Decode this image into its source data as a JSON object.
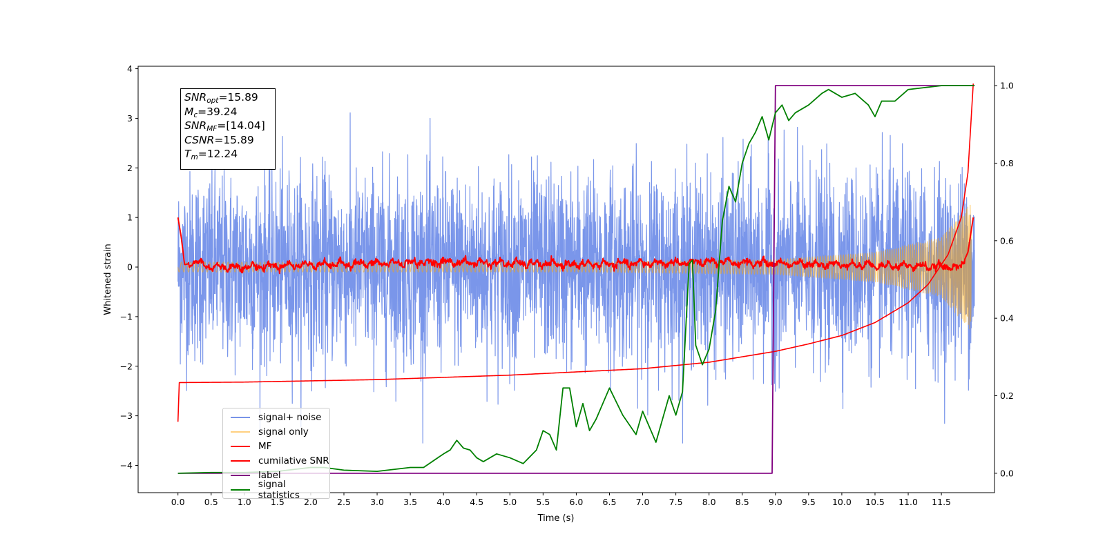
{
  "chart_data": {
    "type": "line",
    "xlabel": "Time (s)",
    "ylabel": "Whitened strain",
    "xlim": [
      -0.6,
      12.3
    ],
    "ylim": [
      -4.55,
      4.05
    ],
    "y2lim": [
      -0.05,
      1.05
    ],
    "x_ticks": [
      "0.0",
      "0.5",
      "1.0",
      "1.5",
      "2.0",
      "2.5",
      "3.0",
      "3.5",
      "4.0",
      "4.5",
      "5.0",
      "5.5",
      "6.0",
      "6.5",
      "7.0",
      "7.5",
      "8.0",
      "8.5",
      "9.0",
      "9.5",
      "10.0",
      "10.5",
      "11.0",
      "11.5"
    ],
    "y_ticks": [
      "4",
      "3",
      "2",
      "1",
      "0",
      "−1",
      "−2",
      "−3",
      "−4"
    ],
    "y_tick_values": [
      4,
      3,
      2,
      1,
      0,
      -1,
      -2,
      -3,
      -4
    ],
    "y2_ticks": [
      "1.0",
      "0.8",
      "0.6",
      "0.4",
      "0.2",
      "0.0"
    ],
    "y2_tick_values": [
      1.0,
      0.8,
      0.6,
      0.4,
      0.2,
      0.0
    ],
    "grid": false,
    "legend_position": "lower-left",
    "annotation": {
      "snr_opt": "=15.89",
      "mc": "=39.24",
      "snr_mf": "=[14.04]",
      "csnr": "=15.89",
      "tm": "=12.24"
    },
    "series": [
      {
        "name": "signal+ noise",
        "color": "#4169e1",
        "axis": "left",
        "description_points": {
          "x_range": [
            0.0,
            12.0
          ],
          "std": 1.0,
          "max": 3.65,
          "min": -4.15
        }
      },
      {
        "name": "signal only",
        "color": "#ffa500",
        "axis": "left",
        "description_points": {
          "x": [
            0.0,
            6.0,
            9.0,
            10.5,
            11.5,
            11.95
          ],
          "amplitude": [
            0.1,
            0.1,
            0.15,
            0.3,
            0.6,
            1.3
          ]
        }
      },
      {
        "name": "MF",
        "color": "#ff0000",
        "axis": "left",
        "x": [
          0.0,
          0.05,
          0.1,
          0.3,
          0.5,
          1.0,
          2.0,
          4.0,
          6.0,
          8.0,
          10.0,
          11.8,
          11.9,
          11.98
        ],
        "y": [
          1.0,
          0.6,
          0.05,
          0.1,
          0.0,
          0.0,
          0.05,
          0.1,
          0.05,
          0.1,
          0.05,
          0.0,
          0.3,
          1.0
        ]
      },
      {
        "name": "cumilative SNR",
        "color": "#ff0000",
        "axis": "left",
        "x": [
          0.0,
          0.02,
          1.0,
          3.0,
          5.0,
          7.0,
          8.0,
          9.0,
          9.5,
          10.0,
          10.5,
          11.0,
          11.3,
          11.6,
          11.8,
          11.9,
          11.98
        ],
        "y": [
          -3.12,
          -2.33,
          -2.32,
          -2.27,
          -2.18,
          -2.05,
          -1.92,
          -1.7,
          -1.55,
          -1.38,
          -1.12,
          -0.72,
          -0.35,
          0.25,
          1.0,
          1.9,
          3.7
        ]
      },
      {
        "name": "label",
        "color": "#800080",
        "axis": "right",
        "x": [
          0.0,
          8.95,
          9.0,
          12.0
        ],
        "y": [
          0.0,
          0.0,
          1.0,
          1.0
        ]
      },
      {
        "name": "signal statistics",
        "color": "#008000",
        "axis": "right",
        "x": [
          0.0,
          0.5,
          1.0,
          1.5,
          2.0,
          2.2,
          2.5,
          3.0,
          3.5,
          3.7,
          4.0,
          4.1,
          4.2,
          4.3,
          4.4,
          4.5,
          4.6,
          4.8,
          5.0,
          5.2,
          5.4,
          5.5,
          5.6,
          5.7,
          5.8,
          5.9,
          6.0,
          6.1,
          6.2,
          6.3,
          6.5,
          6.7,
          6.9,
          7.0,
          7.2,
          7.4,
          7.5,
          7.6,
          7.7,
          7.75,
          7.8,
          7.9,
          8.0,
          8.1,
          8.2,
          8.3,
          8.4,
          8.5,
          8.6,
          8.7,
          8.8,
          8.9,
          9.0,
          9.1,
          9.2,
          9.3,
          9.5,
          9.7,
          9.8,
          10.0,
          10.2,
          10.4,
          10.5,
          10.6,
          10.8,
          11.0,
          11.5,
          12.0
        ],
        "y": [
          0.0,
          0.002,
          0.002,
          0.005,
          0.015,
          0.015,
          0.008,
          0.005,
          0.015,
          0.015,
          0.05,
          0.06,
          0.085,
          0.065,
          0.06,
          0.04,
          0.03,
          0.05,
          0.04,
          0.025,
          0.06,
          0.11,
          0.1,
          0.06,
          0.22,
          0.22,
          0.12,
          0.18,
          0.11,
          0.14,
          0.22,
          0.15,
          0.1,
          0.16,
          0.08,
          0.2,
          0.15,
          0.21,
          0.54,
          0.55,
          0.33,
          0.28,
          0.32,
          0.42,
          0.65,
          0.74,
          0.7,
          0.8,
          0.85,
          0.88,
          0.92,
          0.86,
          0.93,
          0.95,
          0.91,
          0.93,
          0.95,
          0.98,
          0.99,
          0.97,
          0.98,
          0.95,
          0.92,
          0.96,
          0.96,
          0.99,
          1.0,
          1.0
        ]
      }
    ]
  },
  "legend": {
    "items": [
      {
        "label": "signal+ noise",
        "color": "#4169e1"
      },
      {
        "label": "signal only",
        "color": "#ffa500"
      },
      {
        "label": "MF",
        "color": "#ff0000"
      },
      {
        "label": "cumilative SNR",
        "color": "#ff0000"
      },
      {
        "label": "label",
        "color": "#800080"
      },
      {
        "label": "signal statistics",
        "color": "#008000"
      }
    ]
  }
}
